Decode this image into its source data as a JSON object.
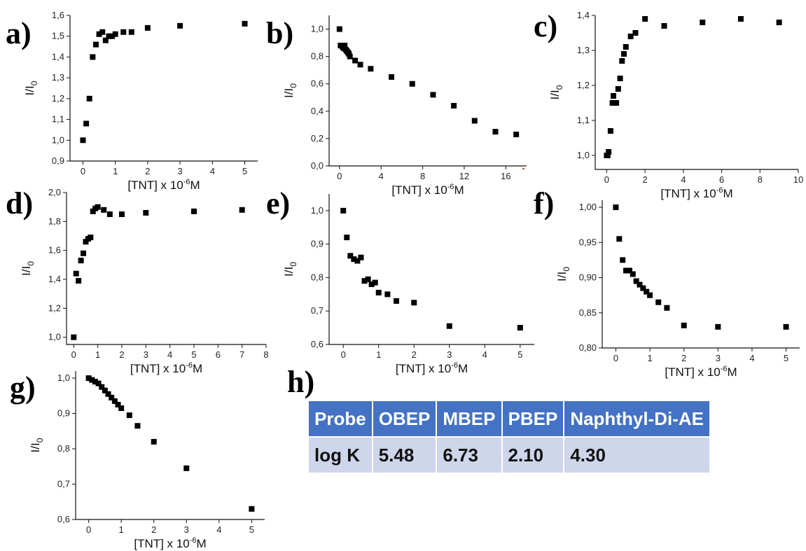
{
  "chart_data": [
    {
      "panel": "a)",
      "type": "scatter",
      "xlabel": "[TNT] x 10",
      "xlabel_exp": "-6",
      "xlabel_unit": "M",
      "ylabel": "I/I",
      "ylabel_sub": "0",
      "xlim": [
        -0.4,
        5.4
      ],
      "ylim": [
        0.9,
        1.6
      ],
      "xticks": [
        0,
        1,
        2,
        3,
        4,
        5
      ],
      "yticks": [
        0.9,
        1.0,
        1.1,
        1.2,
        1.3,
        1.4,
        1.5,
        1.6
      ],
      "ytick_decimals": 1,
      "x": [
        0,
        0.1,
        0.2,
        0.3,
        0.4,
        0.5,
        0.6,
        0.7,
        0.8,
        0.9,
        1.0,
        1.25,
        1.5,
        2,
        3,
        5
      ],
      "y": [
        1.0,
        1.08,
        1.2,
        1.4,
        1.46,
        1.51,
        1.52,
        1.48,
        1.5,
        1.5,
        1.51,
        1.52,
        1.52,
        1.54,
        1.55,
        1.56
      ]
    },
    {
      "panel": "b)",
      "type": "scatter",
      "xlabel": "[TNT] x 10",
      "xlabel_exp": "-6",
      "xlabel_unit": "M",
      "ylabel": "I/I",
      "ylabel_sub": "0",
      "xlim": [
        -1,
        18
      ],
      "ylim": [
        0.0,
        1.1
      ],
      "xticks": [
        0,
        4,
        8,
        12,
        16
      ],
      "yticks": [
        0.0,
        0.2,
        0.4,
        0.6,
        0.8,
        1.0
      ],
      "ytick_decimals": 1,
      "x": [
        0,
        0.1,
        0.2,
        0.3,
        0.4,
        0.5,
        0.6,
        0.7,
        0.8,
        0.9,
        1.0,
        1.5,
        2,
        3,
        5,
        7,
        9,
        11,
        13,
        15,
        17
      ],
      "y": [
        1.0,
        0.88,
        0.88,
        0.87,
        0.86,
        0.88,
        0.85,
        0.84,
        0.83,
        0.82,
        0.8,
        0.77,
        0.74,
        0.71,
        0.65,
        0.6,
        0.52,
        0.44,
        0.33,
        0.25,
        0.23
      ],
      "stray_marks": [
        {
          "x": 17.7,
          "y": -0.02
        }
      ]
    },
    {
      "panel": "c)",
      "type": "scatter",
      "xlabel": "[TNT] x 10",
      "xlabel_exp": "-6",
      "xlabel_unit": "M",
      "ylabel": "I/I",
      "ylabel_sub": "0",
      "xlim": [
        -0.6,
        10
      ],
      "ylim": [
        0.96,
        1.4
      ],
      "xticks": [
        0,
        2,
        4,
        6,
        8,
        10
      ],
      "yticks": [
        1.0,
        1.1,
        1.2,
        1.3,
        1.4
      ],
      "ytick_decimals": 1,
      "x": [
        0,
        0.05,
        0.1,
        0.2,
        0.3,
        0.35,
        0.4,
        0.5,
        0.6,
        0.7,
        0.8,
        0.9,
        1.0,
        1.25,
        1.5,
        2,
        3,
        5,
        7,
        9
      ],
      "y": [
        1.0,
        1.0,
        1.01,
        1.07,
        1.15,
        1.17,
        1.15,
        1.15,
        1.19,
        1.22,
        1.27,
        1.29,
        1.31,
        1.34,
        1.35,
        1.39,
        1.37,
        1.38,
        1.39,
        1.38
      ]
    },
    {
      "panel": "d)",
      "type": "scatter",
      "xlabel": "[TNT] x 10",
      "xlabel_exp": "-6",
      "xlabel_unit": "M",
      "ylabel": "I/I",
      "ylabel_sub": "0",
      "xlim": [
        -0.3,
        8
      ],
      "ylim": [
        0.95,
        2.0
      ],
      "xticks": [
        0,
        1,
        2,
        3,
        4,
        5,
        6,
        7,
        8
      ],
      "yticks": [
        1.0,
        1.2,
        1.4,
        1.6,
        1.8,
        2.0
      ],
      "ytick_decimals": 1,
      "x": [
        0,
        0.1,
        0.2,
        0.3,
        0.4,
        0.5,
        0.6,
        0.7,
        0.8,
        0.9,
        1.0,
        1.25,
        1.5,
        2,
        3,
        5,
        7
      ],
      "y": [
        1.0,
        1.44,
        1.39,
        1.53,
        1.58,
        1.66,
        1.68,
        1.69,
        1.87,
        1.89,
        1.9,
        1.88,
        1.85,
        1.85,
        1.86,
        1.87,
        1.88
      ]
    },
    {
      "panel": "e)",
      "type": "scatter",
      "xlabel": "[TNT] x 10",
      "xlabel_exp": "-6",
      "xlabel_unit": "M",
      "ylabel": "I/I",
      "ylabel_sub": "0",
      "xlim": [
        -0.4,
        5.4
      ],
      "ylim": [
        0.6,
        1.05
      ],
      "xticks": [
        0,
        1,
        2,
        3,
        4,
        5
      ],
      "yticks": [
        0.6,
        0.7,
        0.8,
        0.9,
        1.0
      ],
      "ytick_decimals": 1,
      "x": [
        0,
        0.1,
        0.2,
        0.3,
        0.4,
        0.5,
        0.6,
        0.7,
        0.8,
        0.9,
        1.0,
        1.25,
        1.5,
        2,
        3,
        5
      ],
      "y": [
        1.0,
        0.92,
        0.865,
        0.855,
        0.85,
        0.86,
        0.79,
        0.795,
        0.78,
        0.785,
        0.755,
        0.75,
        0.73,
        0.725,
        0.655,
        0.65
      ]
    },
    {
      "panel": "f)",
      "type": "scatter",
      "xlabel": "[TNT] x 10",
      "xlabel_exp": "-6",
      "xlabel_unit": "M",
      "ylabel": "I/I",
      "ylabel_sub": "0",
      "xlim": [
        -0.4,
        5.4
      ],
      "ylim": [
        0.8,
        1.01
      ],
      "xticks": [
        0,
        1,
        2,
        3,
        4,
        5
      ],
      "yticks": [
        0.8,
        0.85,
        0.9,
        0.95,
        1.0
      ],
      "ytick_decimals": 2,
      "x": [
        0,
        0.1,
        0.2,
        0.3,
        0.4,
        0.5,
        0.6,
        0.7,
        0.8,
        0.9,
        1.0,
        1.25,
        1.5,
        2,
        3,
        5
      ],
      "y": [
        1.0,
        0.955,
        0.925,
        0.91,
        0.91,
        0.905,
        0.895,
        0.89,
        0.885,
        0.88,
        0.875,
        0.865,
        0.857,
        0.832,
        0.83,
        0.83
      ]
    },
    {
      "panel": "g)",
      "type": "scatter",
      "xlabel": "[TNT] x 10",
      "xlabel_exp": "-6",
      "xlabel_unit": "M",
      "ylabel": "I/I",
      "ylabel_sub": "0",
      "xlim": [
        -0.4,
        5.4
      ],
      "ylim": [
        0.6,
        1.02
      ],
      "xticks": [
        0,
        1,
        2,
        3,
        4,
        5
      ],
      "yticks": [
        0.6,
        0.7,
        0.8,
        0.9,
        1.0
      ],
      "ytick_decimals": 1,
      "x": [
        0,
        0.1,
        0.2,
        0.3,
        0.4,
        0.5,
        0.6,
        0.7,
        0.8,
        0.9,
        1.0,
        1.25,
        1.5,
        2,
        3,
        5
      ],
      "y": [
        1.0,
        0.995,
        0.99,
        0.985,
        0.975,
        0.965,
        0.955,
        0.945,
        0.935,
        0.925,
        0.915,
        0.895,
        0.865,
        0.82,
        0.745,
        0.63
      ]
    }
  ],
  "panel_h": {
    "letter": "h)",
    "table": {
      "header": [
        "Probe",
        "OBEP",
        "MBEP",
        "PBEP",
        "Naphthyl-Di-AE"
      ],
      "row_label": "log K",
      "values": [
        "5.48",
        "6.73",
        "2.10",
        "4.30"
      ]
    }
  },
  "style": {
    "table_header_bg": "#4472c4",
    "table_row_bg": "#cfd5ea",
    "marker_color": "#000000",
    "stray_mark_color": "#e02020"
  }
}
